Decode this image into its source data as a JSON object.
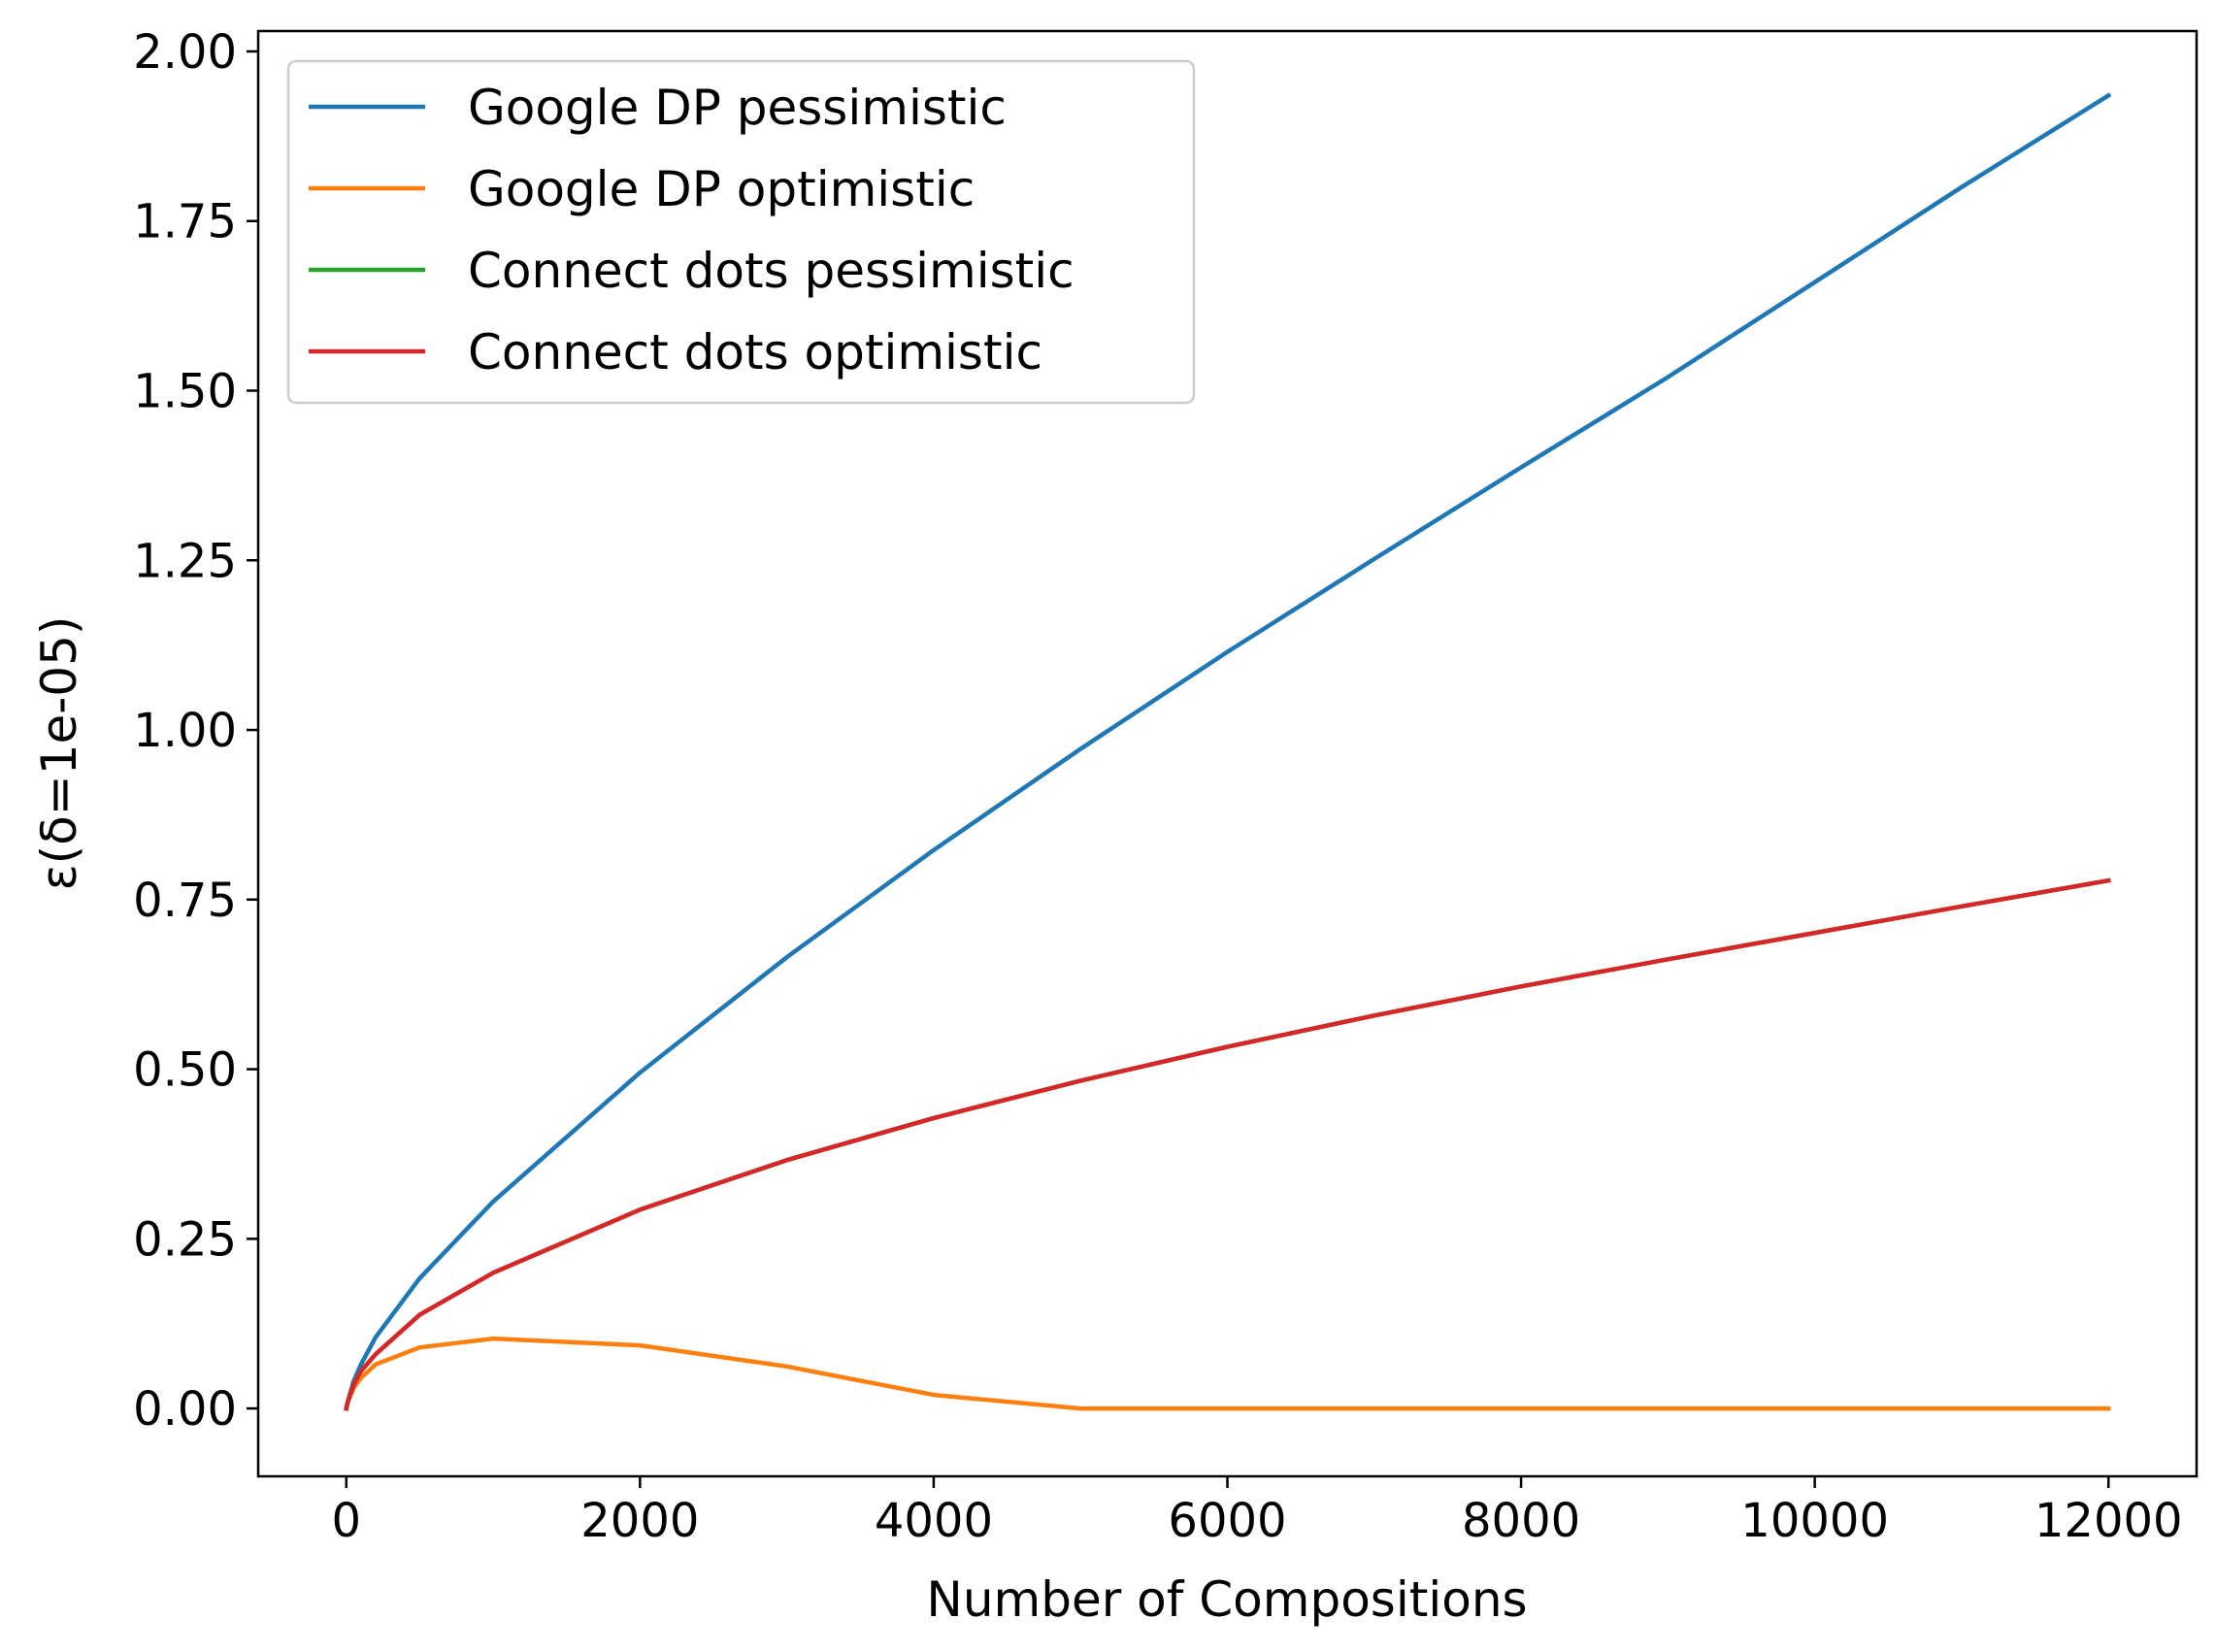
{
  "chart_data": {
    "type": "line",
    "xlabel": "Number of Compositions",
    "ylabel": "ε(δ=1e-05)",
    "xlim": [
      -600,
      12600
    ],
    "ylim": [
      -0.1,
      2.03
    ],
    "xticks": [
      0,
      2000,
      4000,
      6000,
      8000,
      10000,
      12000
    ],
    "xtick_labels": [
      "0",
      "2000",
      "4000",
      "6000",
      "8000",
      "10000",
      "12000"
    ],
    "yticks": [
      0.0,
      0.25,
      0.5,
      0.75,
      1.0,
      1.25,
      1.5,
      1.75,
      2.0
    ],
    "ytick_labels": [
      "0.00",
      "0.25",
      "0.50",
      "0.75",
      "1.00",
      "1.25",
      "1.50",
      "1.75",
      "2.00"
    ],
    "grid": false,
    "legend_position": "top-left",
    "series": [
      {
        "name": "Google DP pessimistic",
        "color": "#1f77b4",
        "x": [
          0,
          10,
          50,
          100,
          200,
          500,
          1000,
          2000,
          3000,
          4000,
          5000,
          6000,
          7000,
          8000,
          9000,
          10000,
          11000,
          12000
        ],
        "y": [
          0.0,
          0.01,
          0.04,
          0.065,
          0.105,
          0.192,
          0.305,
          0.495,
          0.665,
          0.823,
          0.972,
          1.115,
          1.252,
          1.387,
          1.52,
          1.66,
          1.8,
          1.935
        ]
      },
      {
        "name": "Google DP optimistic",
        "color": "#ff7f0e",
        "x": [
          0,
          10,
          50,
          100,
          200,
          500,
          1000,
          2000,
          3000,
          4000,
          5000,
          6000,
          7000,
          8000,
          9000,
          10000,
          11000,
          12000
        ],
        "y": [
          0.0,
          0.01,
          0.03,
          0.045,
          0.065,
          0.09,
          0.103,
          0.093,
          0.062,
          0.02,
          0.0,
          0.0,
          0.0,
          0.0,
          0.0,
          0.0,
          0.0,
          0.0
        ]
      },
      {
        "name": "Connect dots pessimistic",
        "color": "#2ca02c",
        "x": [
          0,
          10,
          50,
          100,
          200,
          500,
          1000,
          2000,
          3000,
          4000,
          5000,
          6000,
          7000,
          8000,
          9000,
          10000,
          11000,
          12000
        ],
        "y": [
          0.0,
          0.01,
          0.035,
          0.055,
          0.08,
          0.138,
          0.2,
          0.293,
          0.366,
          0.428,
          0.483,
          0.533,
          0.579,
          0.622,
          0.662,
          0.701,
          0.74,
          0.778
        ]
      },
      {
        "name": "Connect dots optimistic",
        "color": "#d62728",
        "x": [
          0,
          10,
          50,
          100,
          200,
          500,
          1000,
          2000,
          3000,
          4000,
          5000,
          6000,
          7000,
          8000,
          9000,
          10000,
          11000,
          12000
        ],
        "y": [
          0.0,
          0.01,
          0.035,
          0.055,
          0.08,
          0.138,
          0.2,
          0.293,
          0.366,
          0.428,
          0.483,
          0.533,
          0.579,
          0.622,
          0.662,
          0.701,
          0.74,
          0.778
        ]
      }
    ]
  }
}
